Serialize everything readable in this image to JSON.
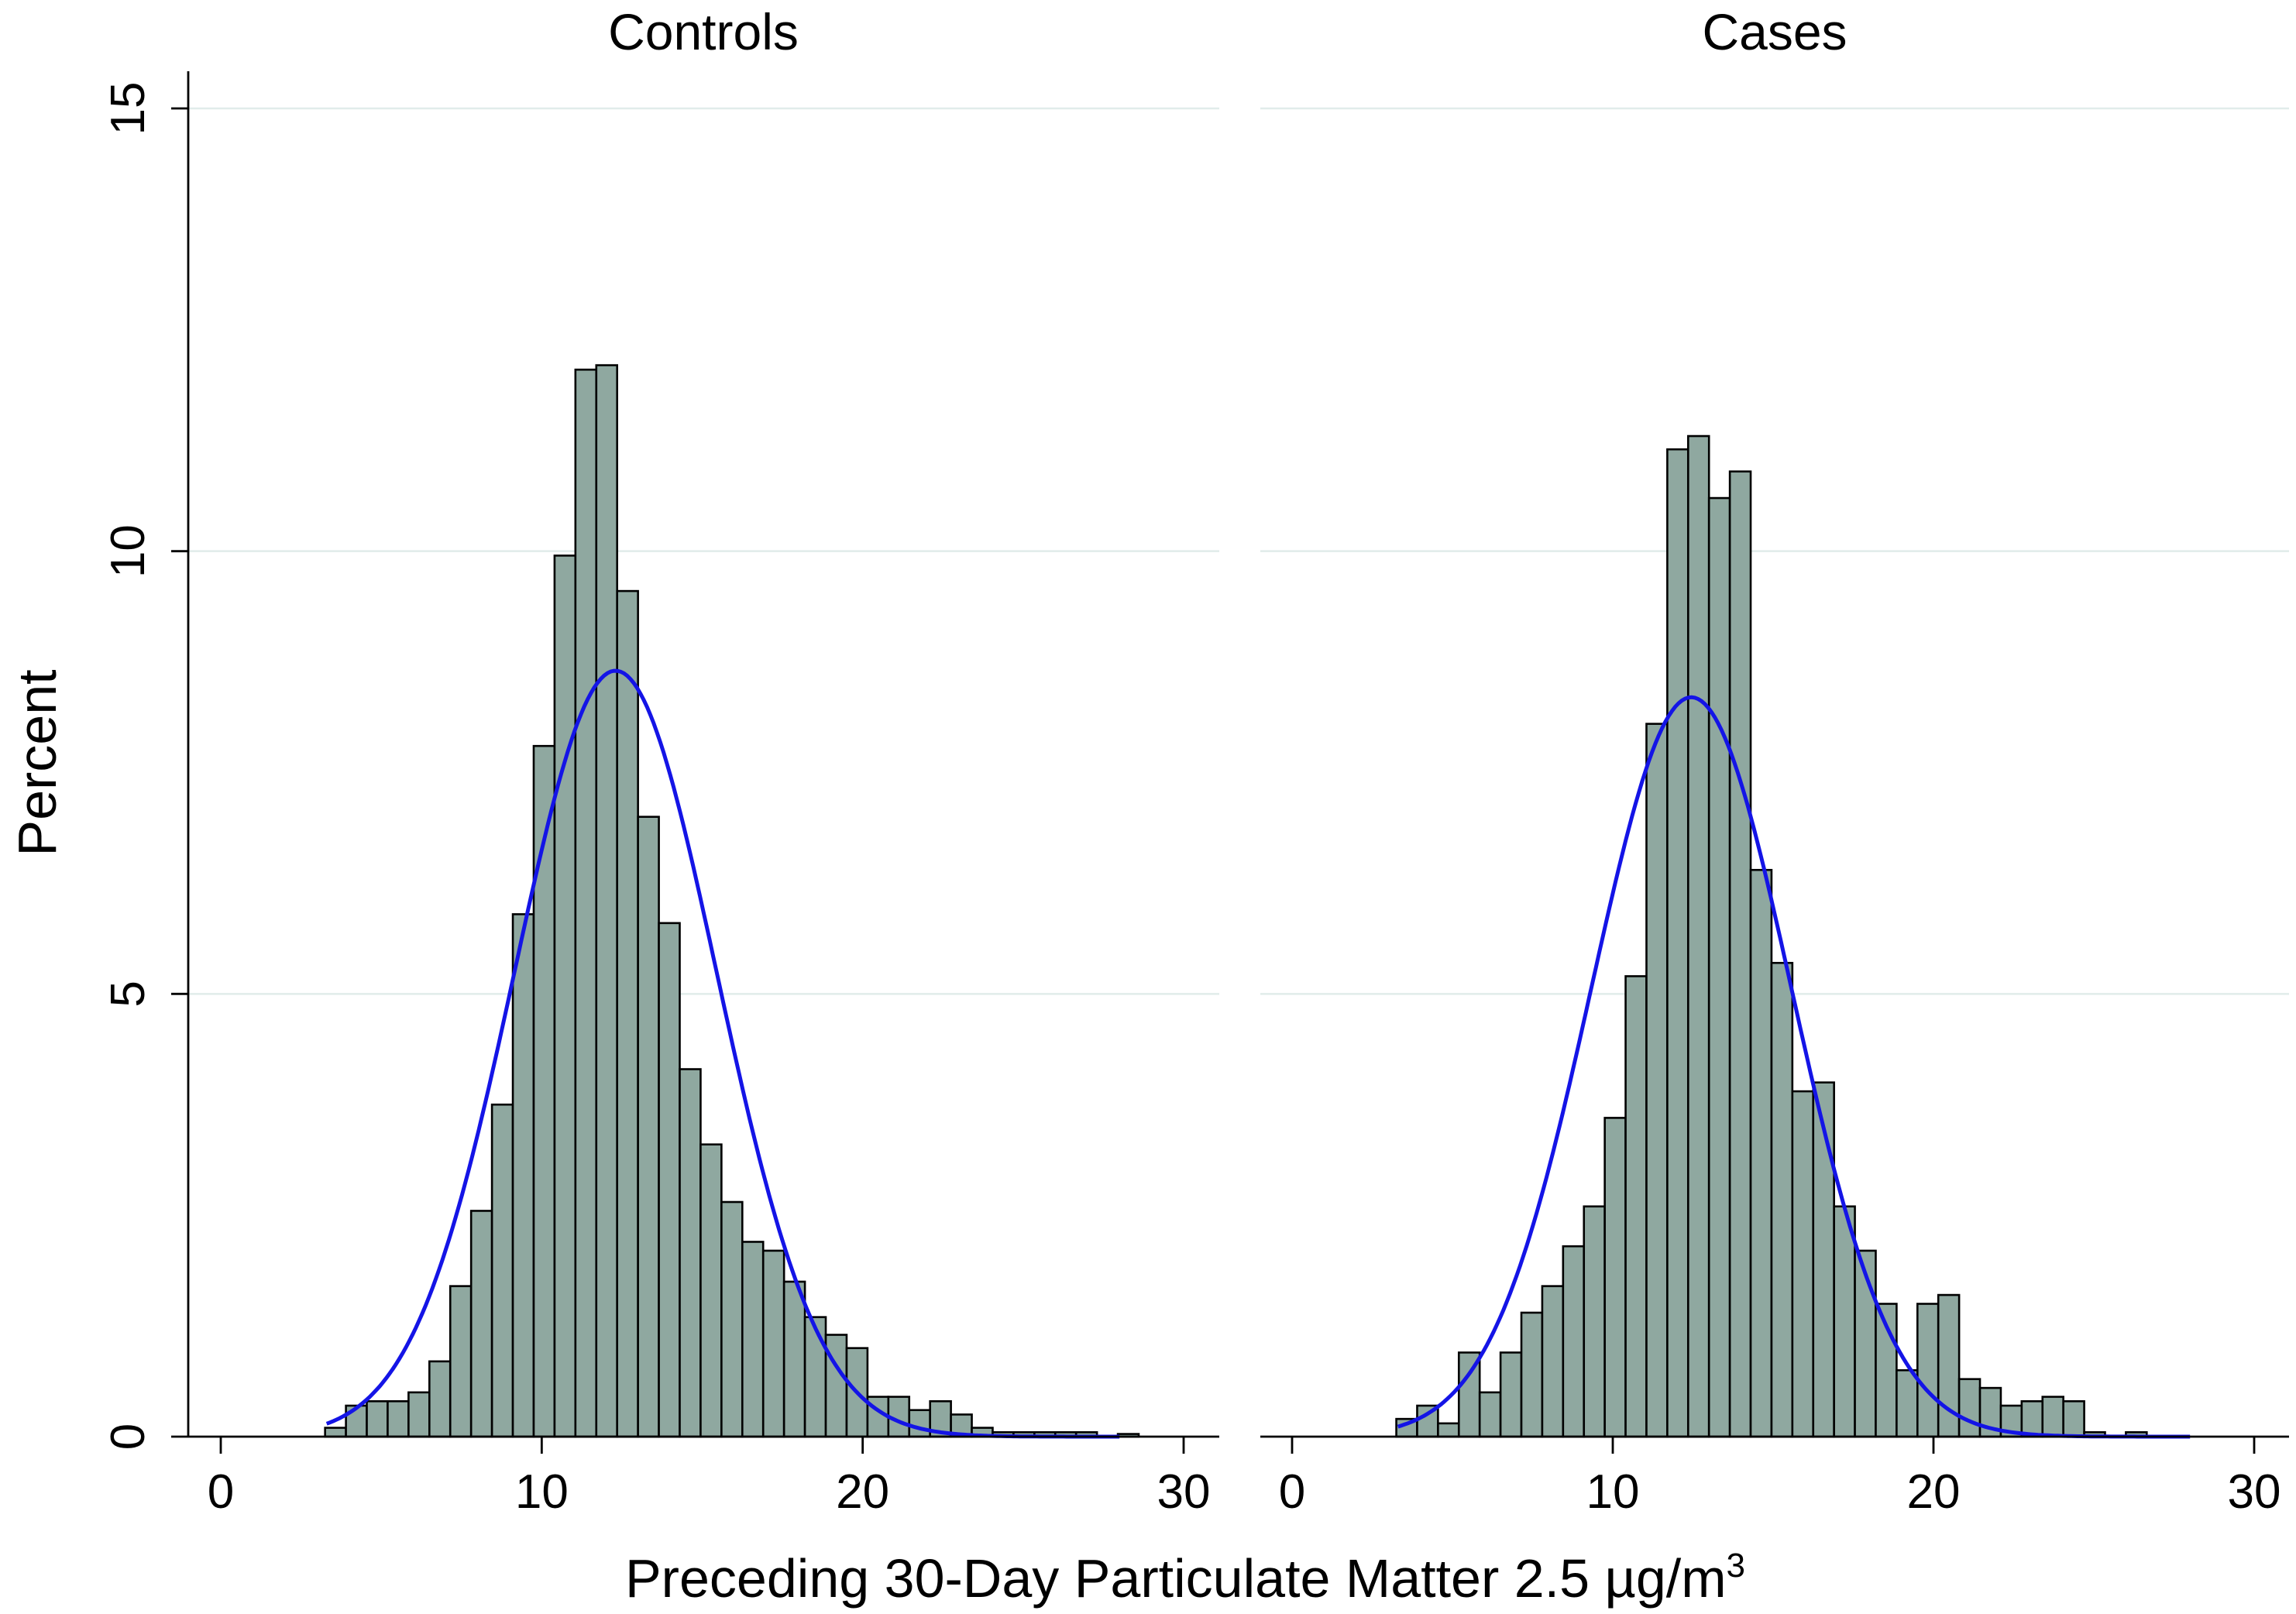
{
  "chart_data": {
    "type": "bar",
    "subtype": "histogram-with-normal-density",
    "ylabel": "Percent",
    "xlabel": "Preceding 30-Day Particulate Matter 2.5 µg/m",
    "xlabel_superscript": "3",
    "xlim": [
      -0.5,
      31
    ],
    "ylim": [
      0,
      15
    ],
    "xticks": [
      0,
      10,
      20,
      30
    ],
    "yticks": [
      0,
      5,
      10,
      15
    ],
    "grid": true,
    "bin_width": 0.65,
    "bar_color": "#8fa8a0",
    "curve_color": "#1414e6",
    "panels": [
      {
        "title": "Controls",
        "bins_start": 3.25,
        "values": [
          0.1,
          0.35,
          0.4,
          0.4,
          0.5,
          0.85,
          1.7,
          2.55,
          3.75,
          5.9,
          7.8,
          9.95,
          12.05,
          12.1,
          9.55,
          7.0,
          5.8,
          4.15,
          3.3,
          2.65,
          2.2,
          2.1,
          1.75,
          1.35,
          1.15,
          1.0,
          0.45,
          0.45,
          0.3,
          0.4,
          0.25,
          0.1,
          0.05,
          0.05,
          0.05,
          0.05,
          0.05,
          0.0,
          0.03
        ],
        "normal_fit": {
          "mean": 12.3,
          "sd": 3.15,
          "peak": 8.65,
          "x_range": [
            3.3,
            28.0
          ]
        }
      },
      {
        "title": "Cases",
        "bins_start": 3.25,
        "values": [
          0.2,
          0.35,
          0.15,
          0.95,
          0.5,
          0.95,
          1.4,
          1.7,
          2.15,
          2.6,
          3.6,
          5.2,
          8.05,
          11.15,
          11.3,
          10.6,
          10.9,
          6.4,
          5.35,
          3.9,
          4.0,
          2.6,
          2.1,
          1.5,
          0.75,
          1.5,
          1.6,
          0.65,
          0.55,
          0.35,
          0.4,
          0.45,
          0.4,
          0.05,
          0.0,
          0.05
        ],
        "normal_fit": {
          "mean": 12.45,
          "sd": 3.12,
          "peak": 8.35,
          "x_range": [
            3.3,
            28.0
          ]
        }
      }
    ]
  }
}
